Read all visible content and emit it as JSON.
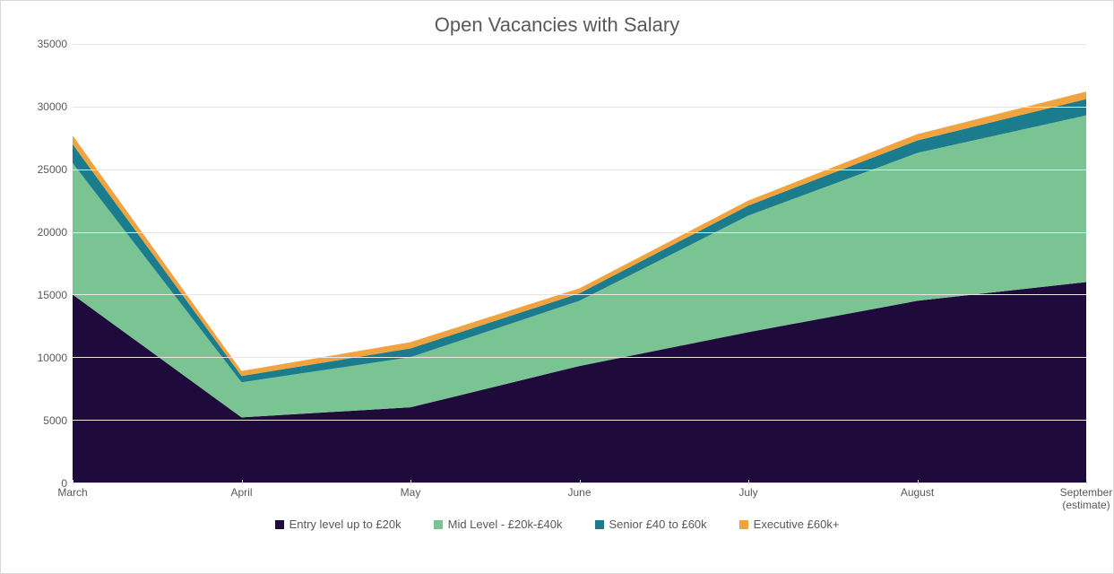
{
  "chart": {
    "type": "area-stacked",
    "title": "Open Vacancies with Salary",
    "title_color": "#595959",
    "title_fontsize": 22,
    "background_color": "#ffffff",
    "border_color": "#d9d9d9",
    "grid_color": "#e6e6e6",
    "axis_label_color": "#595959",
    "axis_fontsize": 12,
    "categories": [
      "March",
      "April",
      "May",
      "June",
      "July",
      "August",
      "September\n(estimate)"
    ],
    "ylim": [
      0,
      35000
    ],
    "ytick_step": 5000,
    "yticks": [
      0,
      5000,
      10000,
      15000,
      20000,
      25000,
      30000,
      35000
    ],
    "series": [
      {
        "name": "Entry level up to £20k",
        "color": "#1f0a3c",
        "values": [
          15000,
          5200,
          6000,
          9300,
          12000,
          14500,
          16000
        ]
      },
      {
        "name": "Mid Level  -  £20k-£40k",
        "color": "#79c492",
        "values": [
          10500,
          2800,
          4000,
          5200,
          9300,
          11800,
          13300
        ]
      },
      {
        "name": "Senior £40 to £60k",
        "color": "#1a7c8c",
        "values": [
          1500,
          500,
          700,
          600,
          800,
          1000,
          1300
        ]
      },
      {
        "name": "Executive £60k+",
        "color": "#f0a33e",
        "values": [
          700,
          400,
          500,
          400,
          400,
          500,
          600
        ]
      }
    ],
    "legend_fontsize": 13
  }
}
